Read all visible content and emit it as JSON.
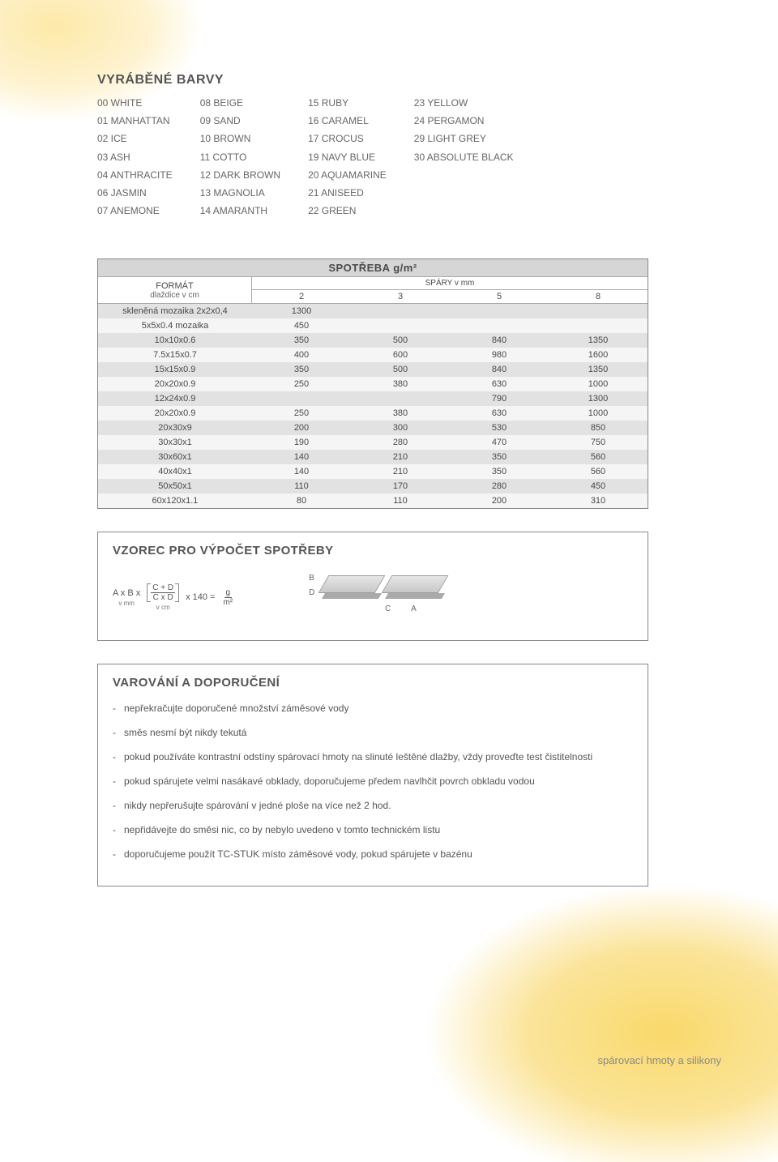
{
  "titles": {
    "colors": "VYRÁBĚNÉ BARVY",
    "table": "SPOTŘEBA g/m²",
    "format_l1": "FORMÁT",
    "format_l2": "dlaždice v cm",
    "spary": "SPÁRY v mm",
    "formula": "VZOREC PRO VÝPOČET SPOTŘEBY",
    "warnings": "VAROVÁNÍ A DOPORUČENÍ",
    "footer": "spárovací hmoty a silikony"
  },
  "colors": {
    "col1": [
      "00 WHITE",
      "01 MANHATTAN",
      "02 ICE",
      "03 ASH",
      "04 ANTHRACITE",
      "06 JASMIN",
      "07 ANEMONE"
    ],
    "col2": [
      "08 BEIGE",
      "09 SAND",
      "10 BROWN",
      "11 COTTO",
      "12 DARK BROWN",
      "13 MAGNOLIA",
      "14 AMARANTH"
    ],
    "col3": [
      "15 RUBY",
      "16 CARAMEL",
      "17 CROCUS",
      "19 NAVY BLUE",
      "20 AQUAMARINE",
      "21 ANISEED",
      "22 GREEN"
    ],
    "col4": [
      "23 YELLOW",
      "24 PERGAMON",
      "29 LIGHT GREY",
      "30 ABSOLUTE BLACK"
    ]
  },
  "table": {
    "col_headers": [
      "2",
      "3",
      "5",
      "8"
    ],
    "rows": [
      {
        "f": "skleněná mozaika 2x2x0,4",
        "v": [
          "1300",
          "",
          "",
          ""
        ]
      },
      {
        "f": "5x5x0.4 mozaika",
        "v": [
          "450",
          "",
          "",
          ""
        ]
      },
      {
        "f": "10x10x0.6",
        "v": [
          "350",
          "500",
          "840",
          "1350"
        ]
      },
      {
        "f": "7.5x15x0.7",
        "v": [
          "400",
          "600",
          "980",
          "1600"
        ]
      },
      {
        "f": "15x15x0.9",
        "v": [
          "350",
          "500",
          "840",
          "1350"
        ]
      },
      {
        "f": "20x20x0.9",
        "v": [
          "250",
          "380",
          "630",
          "1000"
        ]
      },
      {
        "f": "12x24x0.9",
        "v": [
          "",
          "",
          "790",
          "1300"
        ]
      },
      {
        "f": "20x20x0.9",
        "v": [
          "250",
          "380",
          "630",
          "1000"
        ]
      },
      {
        "f": "20x30x9",
        "v": [
          "200",
          "300",
          "530",
          "850"
        ]
      },
      {
        "f": "30x30x1",
        "v": [
          "190",
          "280",
          "470",
          "750"
        ]
      },
      {
        "f": "30x60x1",
        "v": [
          "140",
          "210",
          "350",
          "560"
        ]
      },
      {
        "f": "40x40x1",
        "v": [
          "140",
          "210",
          "350",
          "560"
        ]
      },
      {
        "f": "50x50x1",
        "v": [
          "110",
          "170",
          "280",
          "450"
        ]
      },
      {
        "f": "60x120x1.1",
        "v": [
          "80",
          "110",
          "200",
          "310"
        ]
      }
    ]
  },
  "formula": {
    "AxB": "A x B x",
    "frac1_num": "C + D",
    "frac1_den": "C x D",
    "mult": "x 140 =",
    "frac2_num": "g",
    "frac2_den": "m²",
    "u1": "v mm",
    "u2": "v cm",
    "lblA": "A",
    "lblB": "B",
    "lblC": "C",
    "lblD": "D"
  },
  "warnings": [
    "nepřekračujte doporučené množství záměsové vody",
    "směs nesmí být nikdy tekutá",
    "pokud používáte kontrastní odstíny spárovací hmoty na slinuté leštěné dlažby, vždy proveďte test čistitelnosti",
    "pokud spárujete velmi nasákavé obklady, doporučujeme předem navlhčit povrch obkladu vodou",
    "nikdy nepřerušujte spárování v jedné ploše na více než 2 hod.",
    "nepřidávejte do směsi nic, co by nebylo uvedeno v tomto technickém listu",
    "doporučujeme použít TC-STUK místo záměsové vody, pokud spárujete v bazénu"
  ]
}
